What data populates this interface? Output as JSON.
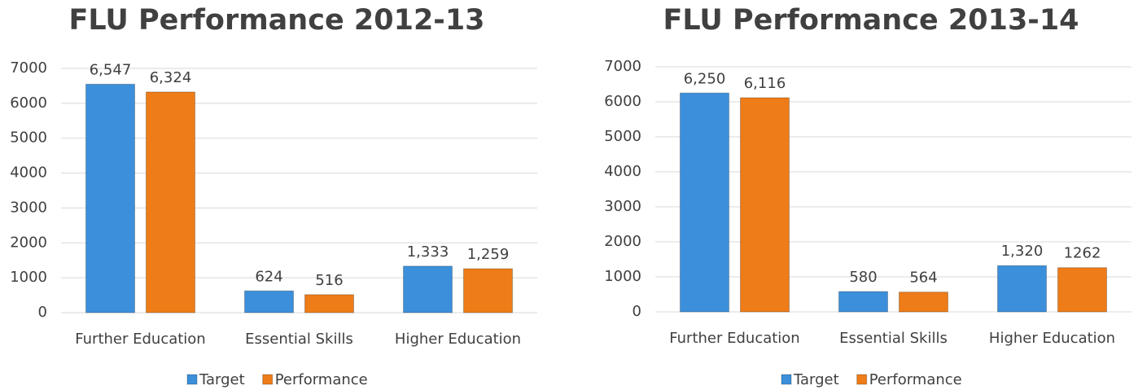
{
  "chart_data": [
    {
      "type": "bar",
      "title": "FLU Performance 2012-13",
      "categories": [
        "Further Education",
        "Essential Skills",
        "Higher Education"
      ],
      "series": [
        {
          "name": "Target",
          "color": "#3b8fdb",
          "values": [
            6547,
            624,
            1333
          ],
          "value_labels": [
            "6,547",
            "624",
            "1,333"
          ]
        },
        {
          "name": "Performance",
          "color": "#ee7c18",
          "values": [
            6324,
            516,
            1259
          ],
          "value_labels": [
            "6,324",
            "516",
            "1,259"
          ]
        }
      ],
      "ylim": [
        0,
        7000
      ],
      "yticks": [
        0,
        1000,
        2000,
        3000,
        4000,
        5000,
        6000,
        7000
      ],
      "grid": true,
      "legend": "bottom"
    },
    {
      "type": "bar",
      "title": "FLU Performance 2013-14",
      "categories": [
        "Further Education",
        "Essential Skills",
        "Higher Education"
      ],
      "series": [
        {
          "name": "Target",
          "color": "#3b8fdb",
          "values": [
            6250,
            580,
            1320
          ],
          "value_labels": [
            "6,250",
            "580",
            "1,320"
          ]
        },
        {
          "name": "Performance",
          "color": "#ee7c18",
          "values": [
            6116,
            564,
            1262
          ],
          "value_labels": [
            "6,116",
            "564",
            "1262"
          ]
        }
      ],
      "ylim": [
        0,
        7000
      ],
      "yticks": [
        0,
        1000,
        2000,
        3000,
        4000,
        5000,
        6000,
        7000
      ],
      "grid": true,
      "legend": "bottom"
    }
  ]
}
